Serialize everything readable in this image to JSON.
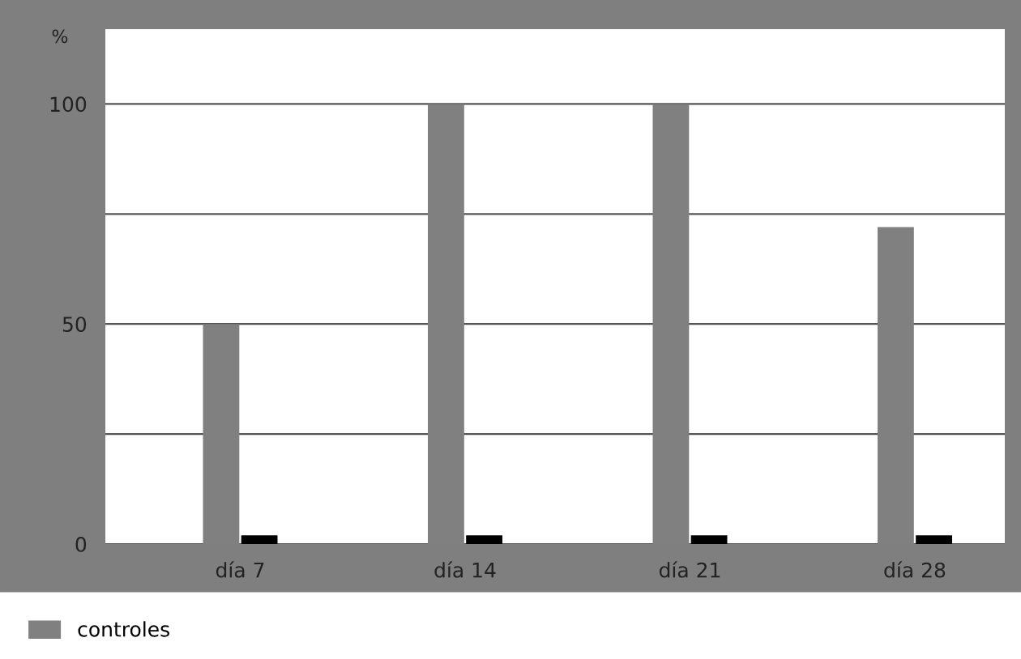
{
  "chart_data": {
    "type": "bar",
    "ylabel": "%",
    "categories": [
      "día 7",
      "día 14",
      "día 21",
      "día 28"
    ],
    "series": [
      {
        "name": "controles",
        "color": "#808080",
        "values": [
          50,
          100,
          100,
          72
        ]
      },
      {
        "color": "#000000",
        "values": [
          2,
          2,
          2,
          2
        ]
      }
    ],
    "ylim": [
      0,
      117
    ],
    "yticks": [
      0,
      {
        "value": 25,
        "label": null
      },
      50,
      {
        "value": 75,
        "label": null
      },
      100
    ],
    "grid": "y",
    "legend": "bottom"
  }
}
